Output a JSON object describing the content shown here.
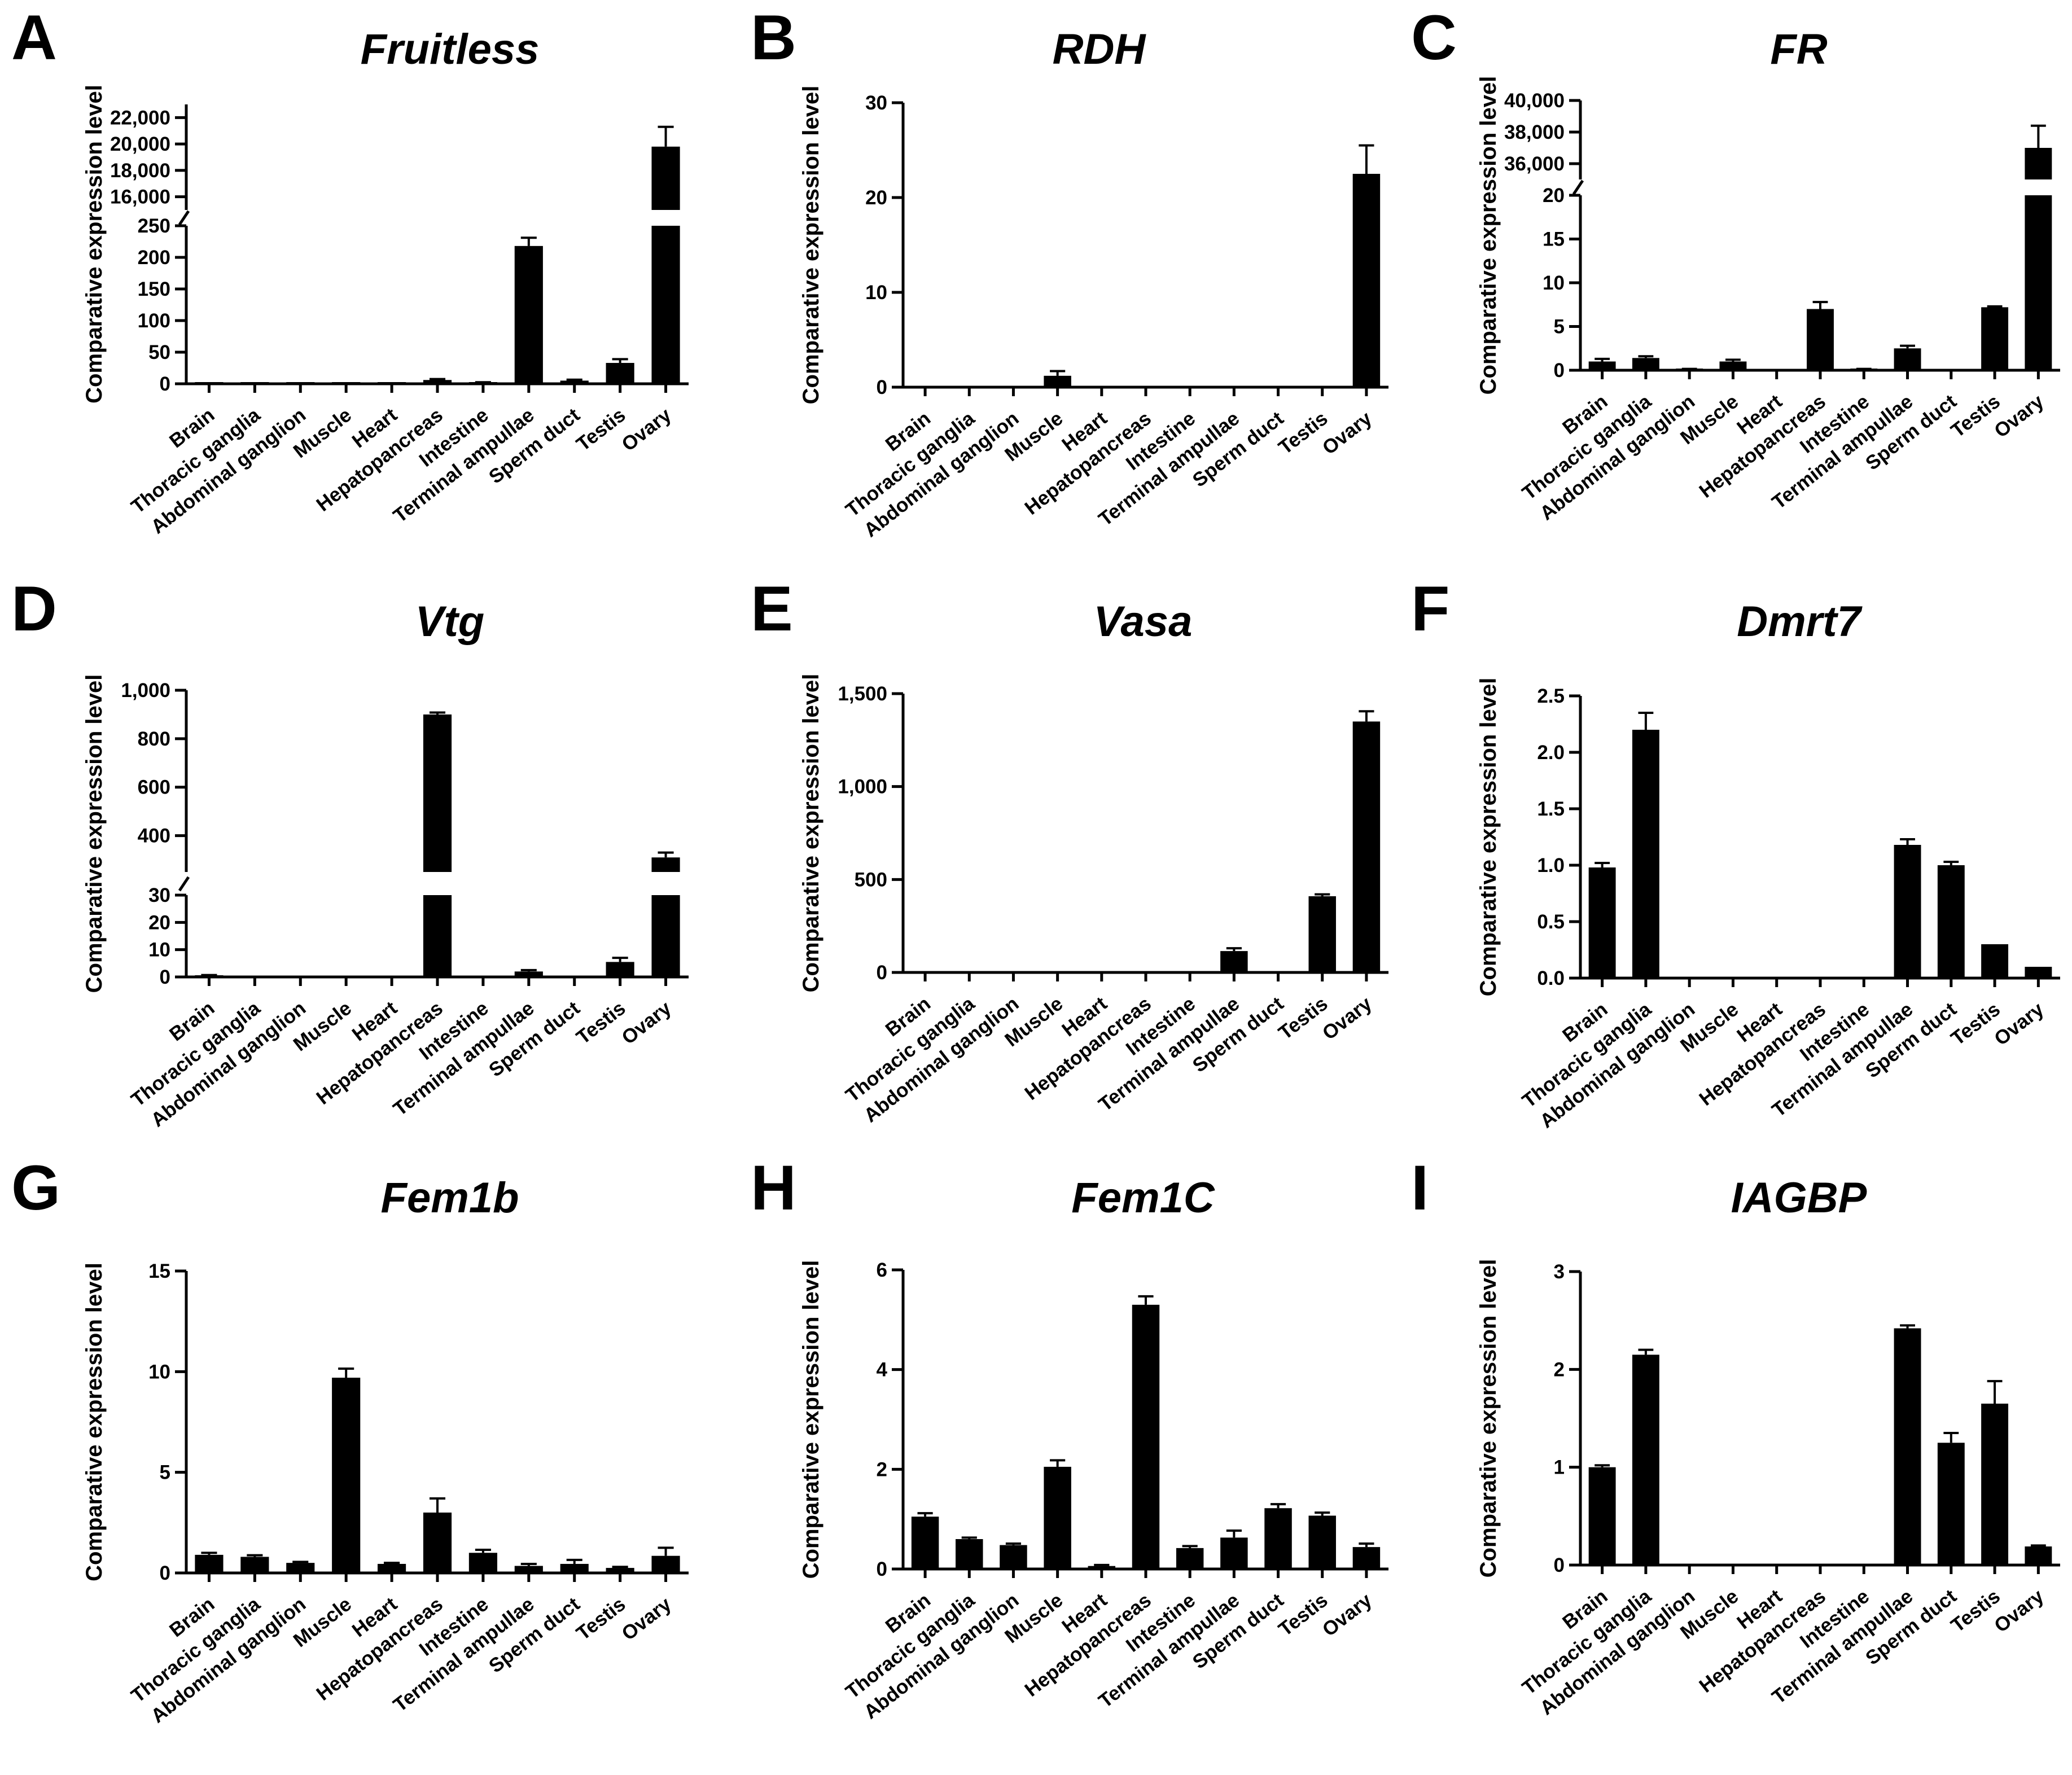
{
  "figure": {
    "categories": [
      "Brain",
      "Thoracic ganglia",
      "Abdominal ganglion",
      "Muscle",
      "Heart",
      "Hepatopancreas",
      "Intestine",
      "Terminal ampullae",
      "Sperm duct",
      "Testis",
      "Ovary"
    ],
    "bar_color": "#000000"
  },
  "chart_data": [
    {
      "panel": "A",
      "title": "Fruitless",
      "type": "bar",
      "ylabel": "Comparative expression level",
      "categories": [
        "Brain",
        "Thoracic ganglia",
        "Abdominal ganglion",
        "Muscle",
        "Heart",
        "Hepatopancreas",
        "Intestine",
        "Terminal ampullae",
        "Sperm duct",
        "Testis",
        "Ovary"
      ],
      "values": [
        0.5,
        0.5,
        0.5,
        0.5,
        0.5,
        6,
        2,
        218,
        5,
        33,
        19800
      ],
      "errors": [
        0.2,
        0.2,
        0.2,
        0.2,
        0.2,
        1.5,
        0.5,
        13,
        1.5,
        6,
        1500
      ],
      "axis_break": {
        "lower": {
          "ylim": [
            0,
            250
          ],
          "ticks": [
            0,
            50,
            100,
            150,
            200,
            250
          ],
          "tick_labels": [
            "0",
            "50",
            "100",
            "150",
            "200",
            "250"
          ]
        },
        "upper": {
          "ylim": [
            15000,
            23000
          ],
          "ticks": [
            16000,
            18000,
            20000,
            22000
          ],
          "tick_labels": [
            "16,000",
            "18,000",
            "20,000",
            "22,000"
          ]
        }
      }
    },
    {
      "panel": "B",
      "title": "RDH",
      "type": "bar",
      "ylabel": "Comparative expression level",
      "categories": [
        "Brain",
        "Thoracic ganglia",
        "Abdominal ganglion",
        "Muscle",
        "Heart",
        "Hepatopancreas",
        "Intestine",
        "Terminal ampullae",
        "Sperm duct",
        "Testis",
        "Ovary"
      ],
      "values": [
        0,
        0,
        0,
        1.2,
        0,
        0,
        0,
        0,
        0,
        0,
        22.5
      ],
      "errors": [
        0,
        0,
        0,
        0.5,
        0,
        0,
        0,
        0,
        0,
        0,
        3.0
      ],
      "ylim": [
        0,
        30
      ],
      "ticks": [
        0,
        10,
        20,
        30
      ],
      "tick_labels": [
        "0",
        "10",
        "20",
        "30"
      ]
    },
    {
      "panel": "C",
      "title": "FR",
      "type": "bar",
      "ylabel": "Comparative expression level",
      "categories": [
        "Brain",
        "Thoracic ganglia",
        "Abdominal ganglion",
        "Muscle",
        "Heart",
        "Hepatopancreas",
        "Intestine",
        "Terminal ampullae",
        "Sperm duct",
        "Testis",
        "Ovary"
      ],
      "values": [
        1.0,
        1.4,
        0.1,
        1.0,
        0,
        7.0,
        0.1,
        2.5,
        0,
        7.2,
        37000
      ],
      "errors": [
        0.3,
        0.2,
        0.05,
        0.2,
        0,
        0.8,
        0.05,
        0.3,
        0,
        0.1,
        1400
      ],
      "axis_break": {
        "lower": {
          "ylim": [
            0,
            20
          ],
          "ticks": [
            0,
            5,
            10,
            15,
            20
          ],
          "tick_labels": [
            "0",
            "5",
            "10",
            "15",
            "20"
          ]
        },
        "upper": {
          "ylim": [
            35000,
            40000
          ],
          "ticks": [
            36000,
            38000,
            40000
          ],
          "tick_labels": [
            "36,000",
            "38,000",
            "40,000"
          ]
        }
      }
    },
    {
      "panel": "D",
      "title": "Vtg",
      "type": "bar",
      "ylabel": "Comparative expression level",
      "categories": [
        "Brain",
        "Thoracic ganglia",
        "Abdominal ganglion",
        "Muscle",
        "Heart",
        "Hepatopancreas",
        "Intestine",
        "Terminal ampullae",
        "Sperm duct",
        "Testis",
        "Ovary"
      ],
      "values": [
        0.5,
        0,
        0,
        0,
        0,
        900,
        0,
        2,
        0,
        5.5,
        310
      ],
      "errors": [
        0.2,
        0,
        0,
        0,
        0,
        8,
        0,
        0.5,
        0,
        1.5,
        20
      ],
      "axis_break": {
        "lower": {
          "ylim": [
            0,
            30
          ],
          "ticks": [
            0,
            10,
            20,
            30
          ],
          "tick_labels": [
            "0",
            "10",
            "20",
            "30"
          ]
        },
        "upper": {
          "ylim": [
            250,
            1000
          ],
          "ticks": [
            400,
            600,
            800,
            1000
          ],
          "tick_labels": [
            "400",
            "600",
            "800",
            "1,000"
          ]
        }
      }
    },
    {
      "panel": "E",
      "title": "Vasa",
      "type": "bar",
      "ylabel": "Comparative expression level",
      "categories": [
        "Brain",
        "Thoracic ganglia",
        "Abdominal ganglion",
        "Muscle",
        "Heart",
        "Hepatopancreas",
        "Intestine",
        "Terminal ampullae",
        "Sperm duct",
        "Testis",
        "Ovary"
      ],
      "values": [
        0,
        0,
        0,
        0,
        0,
        0,
        0,
        115,
        0,
        410,
        1350
      ],
      "errors": [
        0,
        0,
        0,
        0,
        0,
        0,
        0,
        15,
        0,
        10,
        55
      ],
      "ylim": [
        0,
        1500
      ],
      "ticks": [
        0,
        500,
        1000,
        1500
      ],
      "tick_labels": [
        "0",
        "500",
        "1,000",
        "1,500"
      ]
    },
    {
      "panel": "F",
      "title": "Dmrt7",
      "type": "bar",
      "ylabel": "Comparative expression level",
      "categories": [
        "Brain",
        "Thoracic ganglia",
        "Abdominal ganglion",
        "Muscle",
        "Heart",
        "Hepatopancreas",
        "Intestine",
        "Terminal ampullae",
        "Sperm duct",
        "Testis",
        "Ovary"
      ],
      "values": [
        0.98,
        2.2,
        0,
        0,
        0,
        0,
        0,
        1.18,
        1.0,
        0.3,
        0.1
      ],
      "errors": [
        0.04,
        0.15,
        0,
        0,
        0,
        0,
        0,
        0.05,
        0.03,
        0.0,
        0.0
      ],
      "ylim": [
        0,
        2.5
      ],
      "ticks": [
        0,
        0.5,
        1.0,
        1.5,
        2.0,
        2.5
      ],
      "tick_labels": [
        "0.0",
        "0.5",
        "1.0",
        "1.5",
        "2.0",
        "2.5"
      ]
    },
    {
      "panel": "G",
      "title": "Fem1b",
      "type": "bar",
      "ylabel": "Comparative expression level",
      "categories": [
        "Brain",
        "Thoracic ganglia",
        "Abdominal ganglion",
        "Muscle",
        "Heart",
        "Hepatopancreas",
        "Intestine",
        "Terminal ampullae",
        "Sperm duct",
        "Testis",
        "Ovary"
      ],
      "values": [
        0.9,
        0.8,
        0.5,
        9.7,
        0.45,
        3.0,
        1.0,
        0.35,
        0.45,
        0.25,
        0.85
      ],
      "errors": [
        0.1,
        0.08,
        0.05,
        0.45,
        0.05,
        0.7,
        0.15,
        0.1,
        0.2,
        0.05,
        0.4
      ],
      "ylim": [
        0,
        15
      ],
      "ticks": [
        0,
        5,
        10,
        15
      ],
      "tick_labels": [
        "0",
        "5",
        "10",
        "15"
      ]
    },
    {
      "panel": "H",
      "title": "Fem1C",
      "type": "bar",
      "ylabel": "Comparative expression level",
      "categories": [
        "Brain",
        "Thoracic ganglia",
        "Abdominal ganglion",
        "Muscle",
        "Heart",
        "Hepatopancreas",
        "Intestine",
        "Terminal ampullae",
        "Sperm duct",
        "Testis",
        "Ovary"
      ],
      "values": [
        1.05,
        0.6,
        0.48,
        2.05,
        0.06,
        5.3,
        0.42,
        0.63,
        1.22,
        1.07,
        0.44
      ],
      "errors": [
        0.07,
        0.03,
        0.03,
        0.13,
        0.02,
        0.17,
        0.04,
        0.14,
        0.08,
        0.06,
        0.07
      ],
      "ylim": [
        0,
        6
      ],
      "ticks": [
        0,
        2,
        4,
        6
      ],
      "tick_labels": [
        "0",
        "2",
        "4",
        "6"
      ]
    },
    {
      "panel": "I",
      "title": "IAGBP",
      "type": "bar",
      "ylabel": "Comparative expression level",
      "categories": [
        "Brain",
        "Thoracic ganglia",
        "Abdominal ganglion",
        "Muscle",
        "Heart",
        "Hepatopancreas",
        "Intestine",
        "Terminal ampullae",
        "Sperm duct",
        "Testis",
        "Ovary"
      ],
      "values": [
        1.0,
        2.15,
        0,
        0,
        0,
        0,
        0,
        2.42,
        1.25,
        1.65,
        0.19
      ],
      "errors": [
        0.02,
        0.05,
        0,
        0,
        0,
        0,
        0,
        0.03,
        0.1,
        0.23,
        0.01
      ],
      "ylim": [
        0,
        3
      ],
      "ticks": [
        0,
        1,
        2,
        3
      ],
      "tick_labels": [
        "0",
        "1",
        "2",
        "3"
      ]
    }
  ]
}
